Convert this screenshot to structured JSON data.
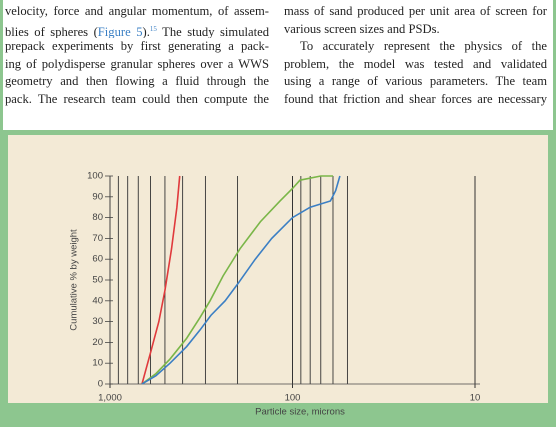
{
  "text": {
    "left_column": [
      "velocity, force and angular momentum, of assem-",
      {
        "before": "blies of spheres (",
        "link": "Figure 5",
        "after": ").",
        "sup": "15",
        "rest": " The study simulated"
      },
      "prepack experiments by first generating a pack-",
      "ing of polydisperse granular spheres over a WWS",
      "geometry and then flowing a fluid through the",
      "pack. The research team could then compute the"
    ],
    "right_column": [
      "mass of sand produced per unit area of screen for",
      "various screen sizes and PSDs.",
      "To accurately represent the physics of the",
      "problem, the model was tested and validated",
      "using a range of various parameters. The team",
      "found that friction and shear forces are necessary"
    ]
  },
  "chart_data": {
    "type": "line",
    "xlabel": "Particle size, microns",
    "ylabel": "Cumulative % by weight",
    "xlog": true,
    "xlim": [
      1000,
      10
    ],
    "xticks": [
      {
        "value": 1000,
        "label": "1,000"
      },
      100,
      10
    ],
    "xgrid": [
      900,
      800,
      700,
      600,
      500,
      400,
      300,
      200,
      90,
      80,
      70,
      60,
      50
    ],
    "ylim": [
      0,
      100
    ],
    "yticks": [
      0,
      10,
      20,
      30,
      40,
      50,
      60,
      70,
      80,
      90,
      100
    ],
    "series": [
      {
        "color": "#e03a3c",
        "x": [
          668,
          600,
          540,
          500,
          460,
          430,
          415
        ],
        "values": [
          0,
          15,
          30,
          45,
          65,
          85,
          100
        ]
      },
      {
        "color": "#7ab648",
        "x": [
          668,
          560,
          469,
          380,
          321,
          283,
          240,
          194,
          150,
          117,
          100,
          91,
          70,
          60
        ],
        "values": [
          0,
          5,
          12,
          22,
          32,
          40,
          52,
          65,
          78,
          88,
          94,
          98,
          100,
          100
        ]
      },
      {
        "color": "#3b7fc4",
        "x": [
          668,
          560,
          469,
          380,
          321,
          280,
          234,
          200,
          160,
          130,
          100,
          80,
          62,
          58,
          55
        ],
        "values": [
          0,
          4,
          10,
          18,
          26,
          33,
          40,
          48,
          60,
          70,
          80,
          85,
          88,
          93,
          100
        ]
      }
    ]
  }
}
